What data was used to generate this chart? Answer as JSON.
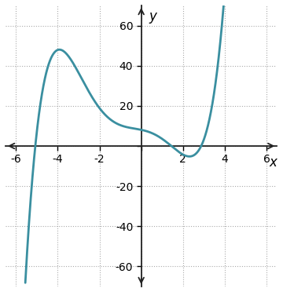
{
  "xlim": [
    -6.5,
    6.5
  ],
  "ylim": [
    -70,
    70
  ],
  "xticks": [
    -6,
    -4,
    -2,
    2,
    4,
    6
  ],
  "yticks": [
    -60,
    -40,
    -20,
    20,
    40,
    60
  ],
  "xlabel": "x",
  "ylabel": "y",
  "curve_color": "#3a8fa0",
  "curve_linewidth": 2.0,
  "grid_color": "#aaaaaa",
  "grid_style": ":",
  "background_color": "#ffffff",
  "axis_color": "#222222",
  "x_curve_start": -5.55,
  "x_curve_end": 4.25,
  "tick_fontsize": 10,
  "figsize": [
    3.6,
    3.72
  ],
  "dpi": 100
}
